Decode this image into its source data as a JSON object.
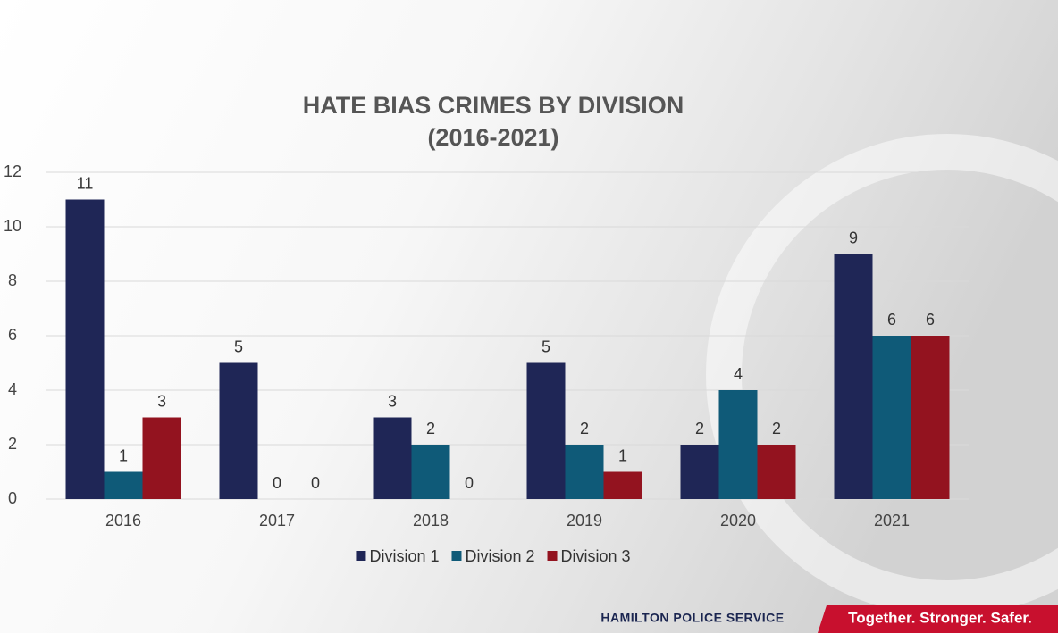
{
  "chart_data": {
    "type": "bar",
    "title": "HATE BIAS CRIMES BY DIVISION",
    "subtitle": "(2016-2021)",
    "categories": [
      "2016",
      "2017",
      "2018",
      "2019",
      "2020",
      "2021"
    ],
    "series": [
      {
        "name": "Division 1",
        "color": "#1f2656",
        "values": [
          11,
          5,
          3,
          5,
          2,
          9
        ]
      },
      {
        "name": "Division 2",
        "color": "#0f5a78",
        "values": [
          1,
          0,
          2,
          2,
          4,
          6
        ]
      },
      {
        "name": "Division 3",
        "color": "#93131f",
        "values": [
          3,
          0,
          0,
          1,
          2,
          6
        ]
      }
    ],
    "ylim": [
      0,
      12
    ],
    "yticks": [
      0,
      2,
      4,
      6,
      8,
      10,
      12
    ],
    "grid": true,
    "legend": "bottom"
  },
  "footer": {
    "organization": "HAMILTON POLICE SERVICE",
    "tagline": "Together. Stronger. Safer."
  }
}
